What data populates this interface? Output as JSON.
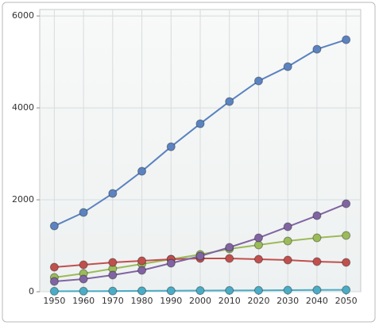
{
  "chart_data": {
    "type": "line",
    "x": [
      1950,
      1960,
      1970,
      1980,
      1990,
      2000,
      2010,
      2020,
      2030,
      2040,
      2050
    ],
    "series": [
      {
        "color": "#5b83c0",
        "values": [
          1431,
          1724,
          2138,
          2621,
          3155,
          3655,
          4138,
          4586,
          4897,
          5276,
          5483
        ]
      },
      {
        "color": "#9bbb59",
        "values": [
          310,
          397,
          500,
          603,
          707,
          810,
          931,
          1017,
          1103,
          1172,
          1224
        ]
      },
      {
        "color": "#c0504d",
        "values": [
          534,
          586,
          638,
          672,
          707,
          724,
          724,
          707,
          690,
          655,
          638
        ]
      },
      {
        "color": "#8064a2",
        "values": [
          224,
          276,
          362,
          466,
          621,
          776,
          966,
          1172,
          1414,
          1655,
          1914
        ]
      },
      {
        "color": "#4bacc6",
        "values": [
          10,
          12,
          15,
          20,
          22,
          25,
          28,
          30,
          35,
          38,
          40
        ]
      }
    ],
    "xlim": [
      1945,
      2055
    ],
    "xticks": [
      1950,
      1960,
      1970,
      1980,
      1990,
      2000,
      2010,
      2020,
      2030,
      2040,
      2050
    ],
    "ylim": [
      0,
      6140
    ],
    "yticks": [
      0,
      2000,
      4000,
      6000
    ],
    "grid": true
  }
}
